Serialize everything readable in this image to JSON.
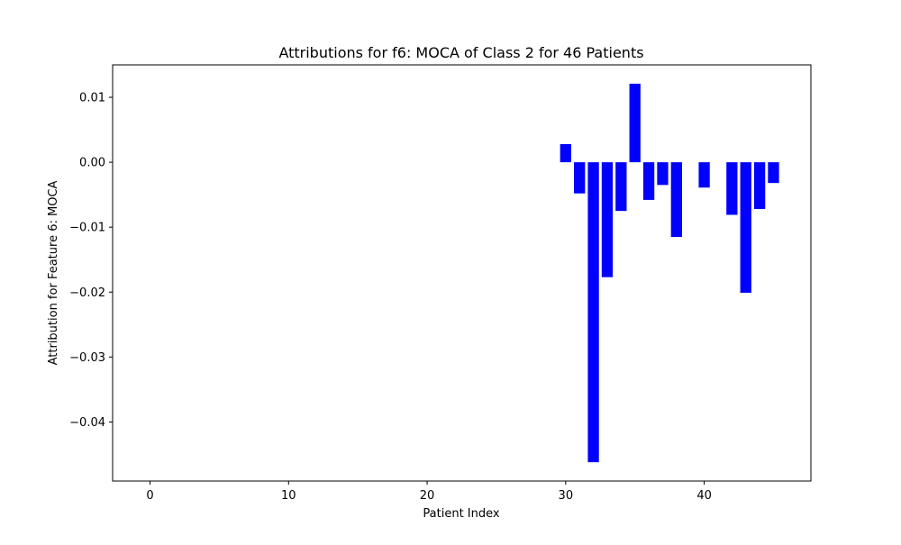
{
  "chart_data": {
    "type": "bar",
    "title": "Attributions for f6: MOCA of Class 2 for 46 Patients",
    "xlabel": "Patient Index",
    "ylabel": "Attribution for Feature 6: MOCA",
    "x": [
      0,
      1,
      2,
      3,
      4,
      5,
      6,
      7,
      8,
      9,
      10,
      11,
      12,
      13,
      14,
      15,
      16,
      17,
      18,
      19,
      20,
      21,
      22,
      23,
      24,
      25,
      26,
      27,
      28,
      29,
      30,
      31,
      32,
      33,
      34,
      35,
      36,
      37,
      38,
      39,
      40,
      41,
      42,
      43,
      44,
      45
    ],
    "values": [
      0,
      0,
      0,
      0,
      0,
      0,
      0,
      0,
      0,
      0,
      0,
      0,
      0,
      0,
      0,
      0,
      0,
      0,
      0,
      0,
      0,
      0,
      0,
      0,
      0,
      0,
      0,
      0,
      0,
      0,
      0.0028,
      -0.0048,
      -0.0462,
      -0.0177,
      -0.0075,
      0.0121,
      -0.0058,
      -0.0035,
      -0.0115,
      0,
      -0.0039,
      0,
      -0.0081,
      -0.0201,
      -0.0072,
      -0.0032
    ],
    "xlim": [
      -2.7,
      47.7
    ],
    "ylim": [
      -0.0491,
      0.015
    ],
    "xticks": [
      0,
      10,
      20,
      30,
      40
    ],
    "xtick_labels": [
      "0",
      "10",
      "20",
      "30",
      "40"
    ],
    "yticks": [
      0.01,
      0.0,
      -0.01,
      -0.02,
      -0.03,
      -0.04
    ],
    "ytick_labels": [
      "0.01",
      "0.00",
      "−0.01",
      "−0.02",
      "−0.03",
      "−0.04"
    ],
    "bar_color": "#0000ff",
    "grid": false,
    "legend": "none"
  }
}
